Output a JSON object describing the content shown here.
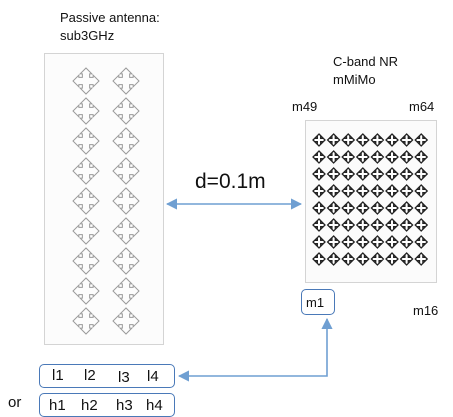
{
  "passive": {
    "title_line1": "Passive antenna:",
    "title_line2": "sub3GHz",
    "columns": 2,
    "rows": 9
  },
  "active": {
    "title_line1": "C-band NR",
    "title_line2": "mMiMo",
    "columns": 8,
    "rows": 8,
    "corner_top_left": "m49",
    "corner_top_right": "m64",
    "corner_bottom_left": "m1",
    "corner_bottom_right": "m16"
  },
  "distance_label": "d=0.1m",
  "ports_l": [
    "l1",
    "l2",
    "l3",
    "l4"
  ],
  "ports_h": [
    "h1",
    "h2",
    "h3",
    "h4"
  ],
  "or_label": "or",
  "colors": {
    "arrow": "#6f9fd2",
    "port_border": "#4a79b8",
    "panel_border": "#d4d4d4",
    "element": "#9a9a9a"
  }
}
